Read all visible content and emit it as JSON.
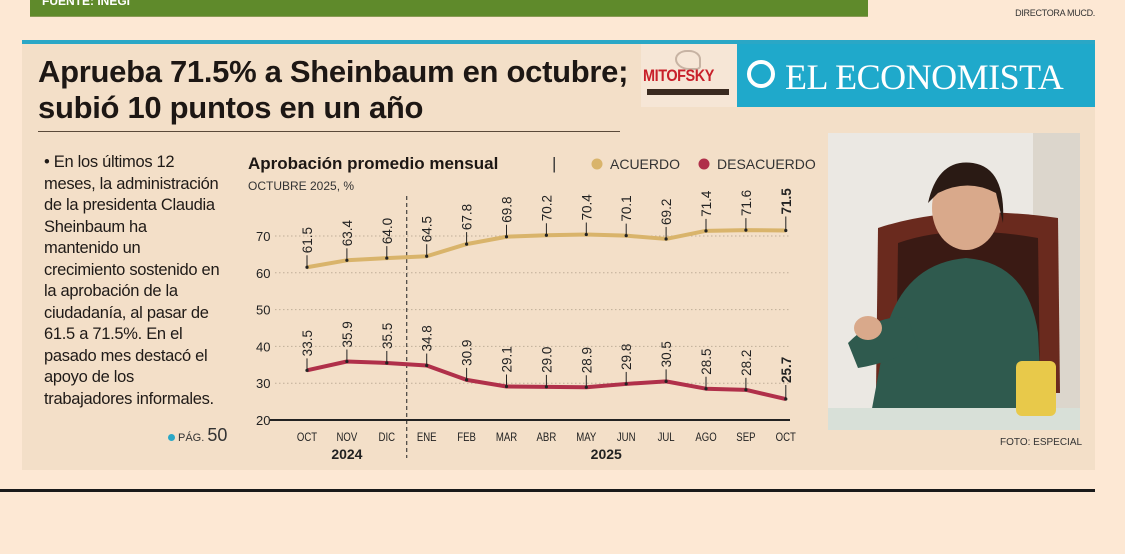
{
  "top_bar": {
    "source": "FUENTE: INEGI",
    "color": "#5f8a2b"
  },
  "top_right_caption": "DIRECTORA MUCD.",
  "headline": "Aprueba 71.5% a Sheinbaum en octubre; subió 10 puntos en un año",
  "logos": {
    "pollster": "MITOFSKY",
    "newspaper": "EL ECONOMISTA",
    "accent": "#1fa9cb"
  },
  "body_text": "• En los últimos 12 meses, la administración de la presidenta Claudia Sheinbaum ha mantenido un crecimiento sostenido en la aprobación de la ciudadanía, al pasar de 61.5 a 71.5%. En el pasado mes destacó el apoyo de los trabajadores informales.",
  "page_ref": {
    "label": "PÁG.",
    "number": "50"
  },
  "photo_credit": "FOTO: ESPECIAL",
  "chart_data": {
    "type": "line",
    "title": "Aprobación promedio mensual",
    "subtitle": "OCTUBRE 2025, %",
    "categories": [
      "OCT",
      "NOV",
      "DIC",
      "ENE",
      "FEB",
      "MAR",
      "ABR",
      "MAY",
      "JUN",
      "JUL",
      "AGO",
      "SEP",
      "OCT"
    ],
    "year_labels": [
      {
        "label": "2024",
        "from": 0,
        "to": 2
      },
      {
        "label": "2025",
        "from": 3,
        "to": 12
      }
    ],
    "ylim": [
      20,
      75
    ],
    "yticks": [
      20,
      30,
      40,
      50,
      60,
      70
    ],
    "grid": true,
    "legend_position": "top-right",
    "series": [
      {
        "name": "ACUERDO",
        "color": "#d9b46b",
        "values": [
          61.5,
          63.4,
          64.0,
          64.5,
          67.8,
          69.8,
          70.2,
          70.4,
          70.1,
          69.2,
          71.4,
          71.6,
          71.5
        ]
      },
      {
        "name": "DESACUERDO",
        "color": "#b0304a",
        "values": [
          33.5,
          35.9,
          35.5,
          34.8,
          30.9,
          29.1,
          29.0,
          28.9,
          29.8,
          30.5,
          28.5,
          28.2,
          25.7
        ]
      }
    ]
  }
}
